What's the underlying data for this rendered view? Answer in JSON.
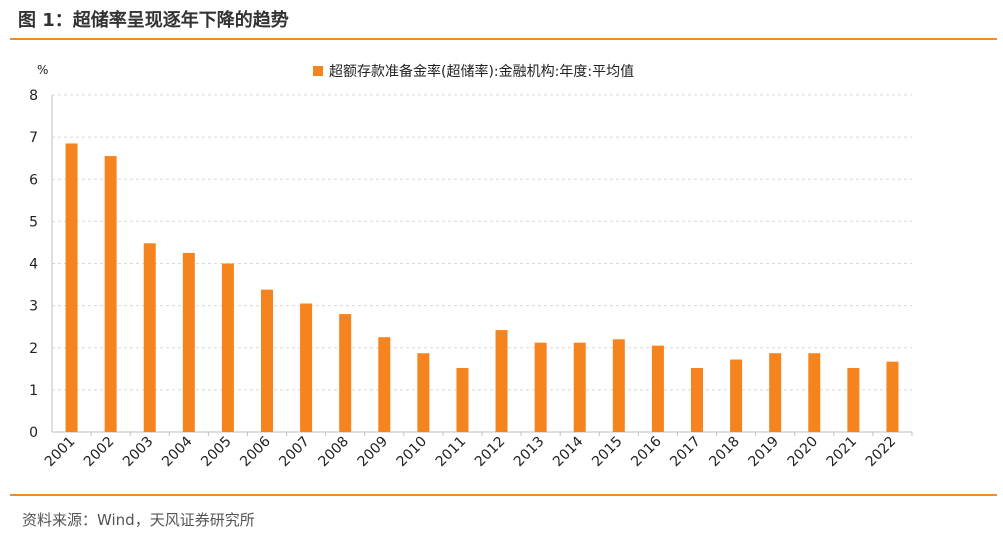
{
  "header": {
    "title": "图 1：超储率呈现逐年下降的趋势"
  },
  "footer": {
    "source": "资料来源：Wind，天风证券研究所"
  },
  "colors": {
    "accent": "#f08c2c",
    "bar": "#f5841f",
    "grid": "#d9d9d9",
    "axis": "#bfbfbf"
  },
  "chart_data": {
    "type": "bar",
    "title": "",
    "unit_label": "%",
    "xlabel": "",
    "ylabel": "",
    "ylim": [
      0,
      8
    ],
    "yticks": [
      0,
      1,
      2,
      3,
      4,
      5,
      6,
      7,
      8
    ],
    "grid": true,
    "legend_position": "top-center",
    "categories": [
      "2001",
      "2002",
      "2003",
      "2004",
      "2005",
      "2006",
      "2007",
      "2008",
      "2009",
      "2010",
      "2011",
      "2012",
      "2013",
      "2014",
      "2015",
      "2016",
      "2017",
      "2018",
      "2019",
      "2020",
      "2021",
      "2022"
    ],
    "series": [
      {
        "name": "超额存款准备金率(超储率):金融机构:年度:平均值",
        "values": [
          6.85,
          6.55,
          4.48,
          4.25,
          4.0,
          3.38,
          3.05,
          2.8,
          2.25,
          1.87,
          1.52,
          2.42,
          2.12,
          2.12,
          2.2,
          2.05,
          1.52,
          1.72,
          1.87,
          1.87,
          1.52,
          1.67
        ]
      }
    ]
  }
}
